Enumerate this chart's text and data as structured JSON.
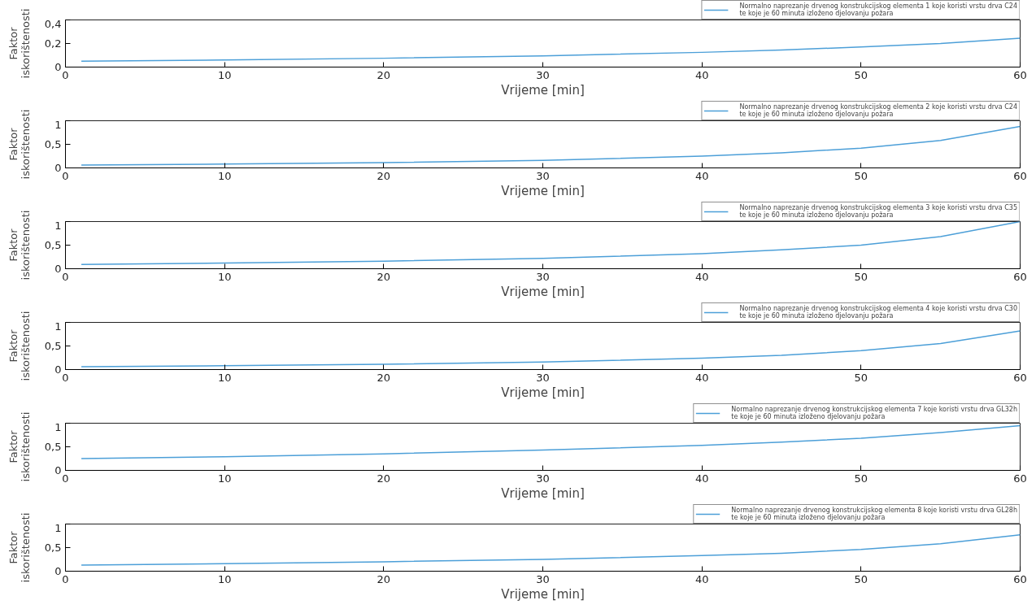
{
  "chart_data": [
    {
      "type": "line",
      "xlabel": "Vrijeme [min]",
      "ylabel": "Faktor\niskorištenosti",
      "x": [
        1,
        10,
        20,
        30,
        40,
        45,
        50,
        55,
        60
      ],
      "xlim": [
        0,
        60
      ],
      "xticks": [
        0,
        10,
        20,
        30,
        40,
        50,
        60
      ],
      "ylim": [
        0,
        0.4
      ],
      "yticks": [
        {
          "value": 0,
          "label": "0"
        },
        {
          "value": 0.2,
          "label": "0,2"
        },
        {
          "value": 0.4,
          "label": "0,4"
        }
      ],
      "legend": "top right",
      "grid": false,
      "series": [
        {
          "name": "Normalno naprezanje drvenog konstrukcijskog elementa 1 koje koristi vrstu drva C24\nte koje je 60 minuta izloženo djelovanju požara",
          "color": "#4c9fd8",
          "values": [
            0.05,
            0.06,
            0.075,
            0.095,
            0.125,
            0.145,
            0.17,
            0.2,
            0.245
          ]
        }
      ]
    },
    {
      "type": "line",
      "xlabel": "Vrijeme [min]",
      "ylabel": "Faktor\niskorištenosti",
      "x": [
        1,
        10,
        20,
        30,
        40,
        45,
        50,
        55,
        60
      ],
      "xlim": [
        0,
        60
      ],
      "xticks": [
        0,
        10,
        20,
        30,
        40,
        50,
        60
      ],
      "ylim": [
        0,
        1
      ],
      "yticks": [
        {
          "value": 0,
          "label": "0"
        },
        {
          "value": 0.5,
          "label": "0,5"
        },
        {
          "value": 1,
          "label": "1"
        }
      ],
      "legend": "top right",
      "grid": false,
      "series": [
        {
          "name": "Normalno naprezanje drvenog konstrukcijskog elementa 2 koje koristi vrstu drva C24\nte koje je 60 minuta izloženo djelovanju požara",
          "color": "#4c9fd8",
          "values": [
            0.06,
            0.08,
            0.11,
            0.16,
            0.25,
            0.32,
            0.42,
            0.58,
            0.88
          ]
        }
      ]
    },
    {
      "type": "line",
      "xlabel": "Vrijeme [min]",
      "ylabel": "Faktor\niskorištenosti",
      "x": [
        1,
        10,
        20,
        30,
        40,
        45,
        50,
        55,
        60
      ],
      "xlim": [
        0,
        60
      ],
      "xticks": [
        0,
        10,
        20,
        30,
        40,
        50,
        60
      ],
      "ylim": [
        0,
        1
      ],
      "yticks": [
        {
          "value": 0,
          "label": "0"
        },
        {
          "value": 0.5,
          "label": "0,5"
        },
        {
          "value": 1,
          "label": "1"
        }
      ],
      "legend": "top right",
      "grid": false,
      "series": [
        {
          "name": "Normalno naprezanje drvenog konstrukcijskog elementa 3 koje koristi vrstu drva C35\nte koje je 60 minuta izloženo djelovanju požara",
          "color": "#4c9fd8",
          "values": [
            0.09,
            0.12,
            0.16,
            0.22,
            0.32,
            0.4,
            0.5,
            0.68,
            1.0
          ]
        }
      ]
    },
    {
      "type": "line",
      "xlabel": "Vrijeme [min]",
      "ylabel": "Faktor\niskorištenosti",
      "x": [
        1,
        10,
        20,
        30,
        40,
        45,
        50,
        55,
        60
      ],
      "xlim": [
        0,
        60
      ],
      "xticks": [
        0,
        10,
        20,
        30,
        40,
        50,
        60
      ],
      "ylim": [
        0,
        1
      ],
      "yticks": [
        {
          "value": 0,
          "label": "0"
        },
        {
          "value": 0.5,
          "label": "0,5"
        },
        {
          "value": 1,
          "label": "1"
        }
      ],
      "legend": "top right",
      "grid": false,
      "series": [
        {
          "name": "Normalno naprezanje drvenog konstrukcijskog elementa 4 koje koristi vrstu drva C30\nte koje je 60 minuta izloženo djelovanju požara",
          "color": "#4c9fd8",
          "values": [
            0.06,
            0.08,
            0.11,
            0.16,
            0.24,
            0.3,
            0.4,
            0.55,
            0.82
          ]
        }
      ]
    },
    {
      "type": "line",
      "xlabel": "Vrijeme [min]",
      "ylabel": "Faktor\niskorištenosti",
      "x": [
        1,
        10,
        20,
        30,
        40,
        45,
        50,
        55,
        60
      ],
      "xlim": [
        0,
        60
      ],
      "xticks": [
        0,
        10,
        20,
        30,
        40,
        50,
        60
      ],
      "ylim": [
        0,
        1
      ],
      "yticks": [
        {
          "value": 0,
          "label": "0"
        },
        {
          "value": 0.5,
          "label": "0,5"
        },
        {
          "value": 1,
          "label": "1"
        }
      ],
      "legend": "top right",
      "grid": false,
      "series": [
        {
          "name": "Normalno naprezanje drvenog konstrukcijskog elementa 7 koje koristi vrstu drva GL32h\nte koje je 60 minuta izloženo djelovanju požara",
          "color": "#4c9fd8",
          "values": [
            0.25,
            0.29,
            0.35,
            0.43,
            0.53,
            0.6,
            0.68,
            0.8,
            0.95
          ]
        }
      ]
    },
    {
      "type": "line",
      "xlabel": "Vrijeme [min]",
      "ylabel": "Faktor\niskorištenosti",
      "x": [
        1,
        10,
        20,
        30,
        40,
        45,
        50,
        55,
        60
      ],
      "xlim": [
        0,
        60
      ],
      "xticks": [
        0,
        10,
        20,
        30,
        40,
        50,
        60
      ],
      "ylim": [
        0,
        1
      ],
      "yticks": [
        {
          "value": 0,
          "label": "0"
        },
        {
          "value": 0.5,
          "label": "0,5"
        },
        {
          "value": 1,
          "label": "1"
        }
      ],
      "legend": "top right",
      "grid": false,
      "series": [
        {
          "name": "Normalno naprezanje drvenog konstrukcijskog elementa 8 koje koristi vrstu drva GL28h\nte koje je 60 minuta izloženo djelovanju požara",
          "color": "#4c9fd8",
          "values": [
            0.13,
            0.16,
            0.2,
            0.25,
            0.33,
            0.38,
            0.46,
            0.58,
            0.77
          ]
        }
      ]
    }
  ]
}
